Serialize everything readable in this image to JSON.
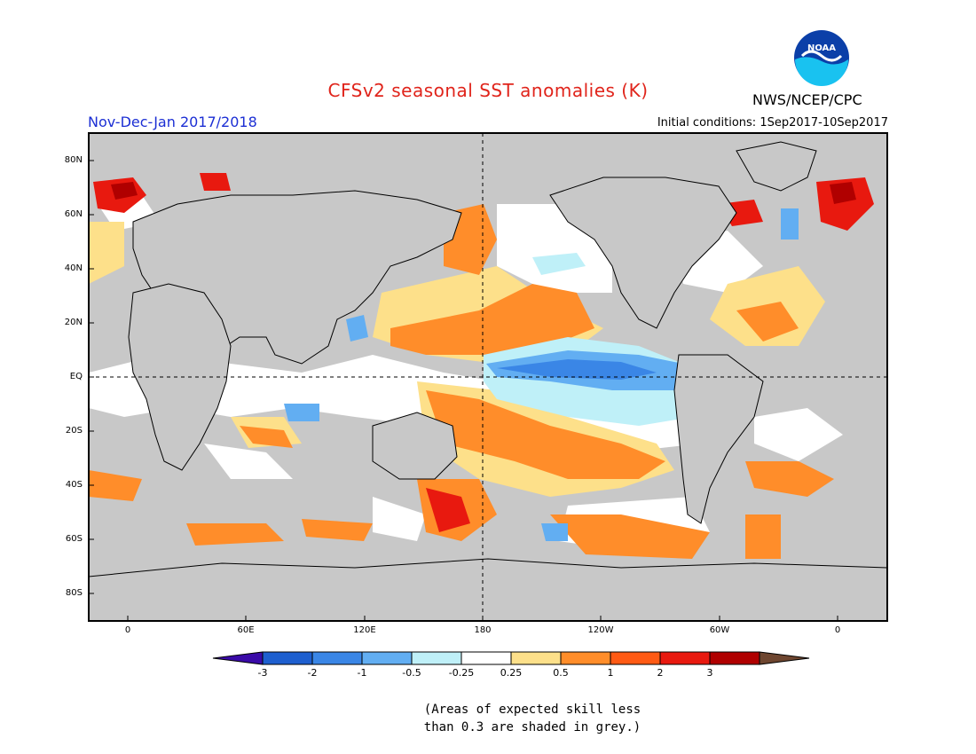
{
  "title": "CFSv2 seasonal SST anomalies (K)",
  "agency": "NWS/NCEP/CPC",
  "season": "Nov-Dec-Jan 2017/2018",
  "initial_conditions": "Initial conditions: 1Sep2017-10Sep2017",
  "logo_text": "NOAA",
  "lat_labels": [
    "80N",
    "60N",
    "40N",
    "20N",
    "EQ",
    "20S",
    "40S",
    "60S",
    "80S"
  ],
  "lon_labels": [
    "0",
    "60E",
    "120E",
    "180",
    "120W",
    "60W",
    "0"
  ],
  "colorbar": {
    "labels": [
      "-3",
      "-2",
      "-1",
      "-0.5",
      "-0.25",
      "0.25",
      "0.5",
      "1",
      "2",
      "3"
    ],
    "colors": [
      "#3a0aa8",
      "#1e5fcf",
      "#3a86e6",
      "#62aef2",
      "#bff0f8",
      "#ffffff",
      "#fde08a",
      "#ff8d2a",
      "#ff5a14",
      "#e8190f",
      "#b00000",
      "#6e4630"
    ]
  },
  "footnote": [
    "(Areas of expected skill less",
    "than 0.3 are shaded in grey.)"
  ]
}
